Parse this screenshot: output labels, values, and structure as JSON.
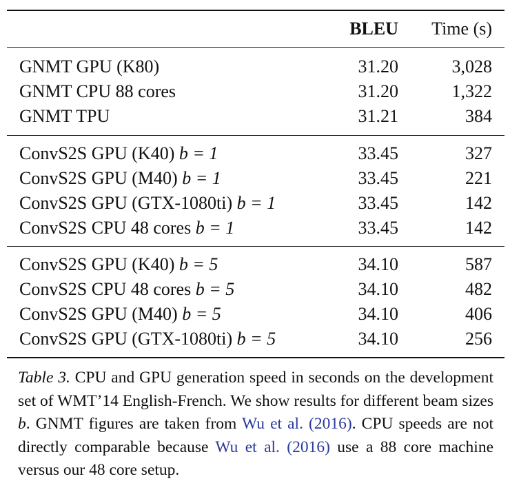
{
  "table": {
    "headers": {
      "label": "",
      "bleu": "BLEU",
      "time": "Time (s)"
    },
    "groups": [
      {
        "rows": [
          {
            "name": "GNMT GPU (K80)",
            "beam": "",
            "bleu": "31.20",
            "time": "3,028"
          },
          {
            "name": "GNMT CPU 88 cores",
            "beam": "",
            "bleu": "31.20",
            "time": "1,322"
          },
          {
            "name": "GNMT TPU",
            "beam": "",
            "bleu": "31.21",
            "time": "384"
          }
        ]
      },
      {
        "rows": [
          {
            "name": "ConvS2S GPU (K40) ",
            "beam": "b = 1",
            "bleu": "33.45",
            "time": "327"
          },
          {
            "name": "ConvS2S GPU (M40) ",
            "beam": "b = 1",
            "bleu": "33.45",
            "time": "221"
          },
          {
            "name": "ConvS2S GPU (GTX-1080ti) ",
            "beam": "b = 1",
            "bleu": "33.45",
            "time": "142"
          },
          {
            "name": "ConvS2S CPU 48 cores ",
            "beam": "b = 1",
            "bleu": "33.45",
            "time": "142"
          }
        ]
      },
      {
        "rows": [
          {
            "name": "ConvS2S GPU (K40) ",
            "beam": "b = 5",
            "bleu": "34.10",
            "time": "587"
          },
          {
            "name": "ConvS2S CPU 48 cores ",
            "beam": "b = 5",
            "bleu": "34.10",
            "time": "482"
          },
          {
            "name": "ConvS2S GPU (M40) ",
            "beam": "b = 5",
            "bleu": "34.10",
            "time": "406"
          },
          {
            "name": "ConvS2S GPU (GTX-1080ti) ",
            "beam": "b = 5",
            "bleu": "34.10",
            "time": "256"
          }
        ]
      }
    ]
  },
  "caption": {
    "label": "Table 3.",
    "part1": " CPU and GPU generation speed in seconds on the development set of WMT’14 English-French. We show results for different beam sizes ",
    "var_b": "b",
    "part2": ". GNMT figures are taken from ",
    "cite1": "Wu et al. (2016)",
    "part3": ". CPU speeds are not directly comparable because ",
    "cite2": "Wu et al. (2016)",
    "part4": " use a 88 core machine versus our 48 core setup."
  },
  "colors": {
    "text": "#111111",
    "citation": "#2a3a9a"
  }
}
